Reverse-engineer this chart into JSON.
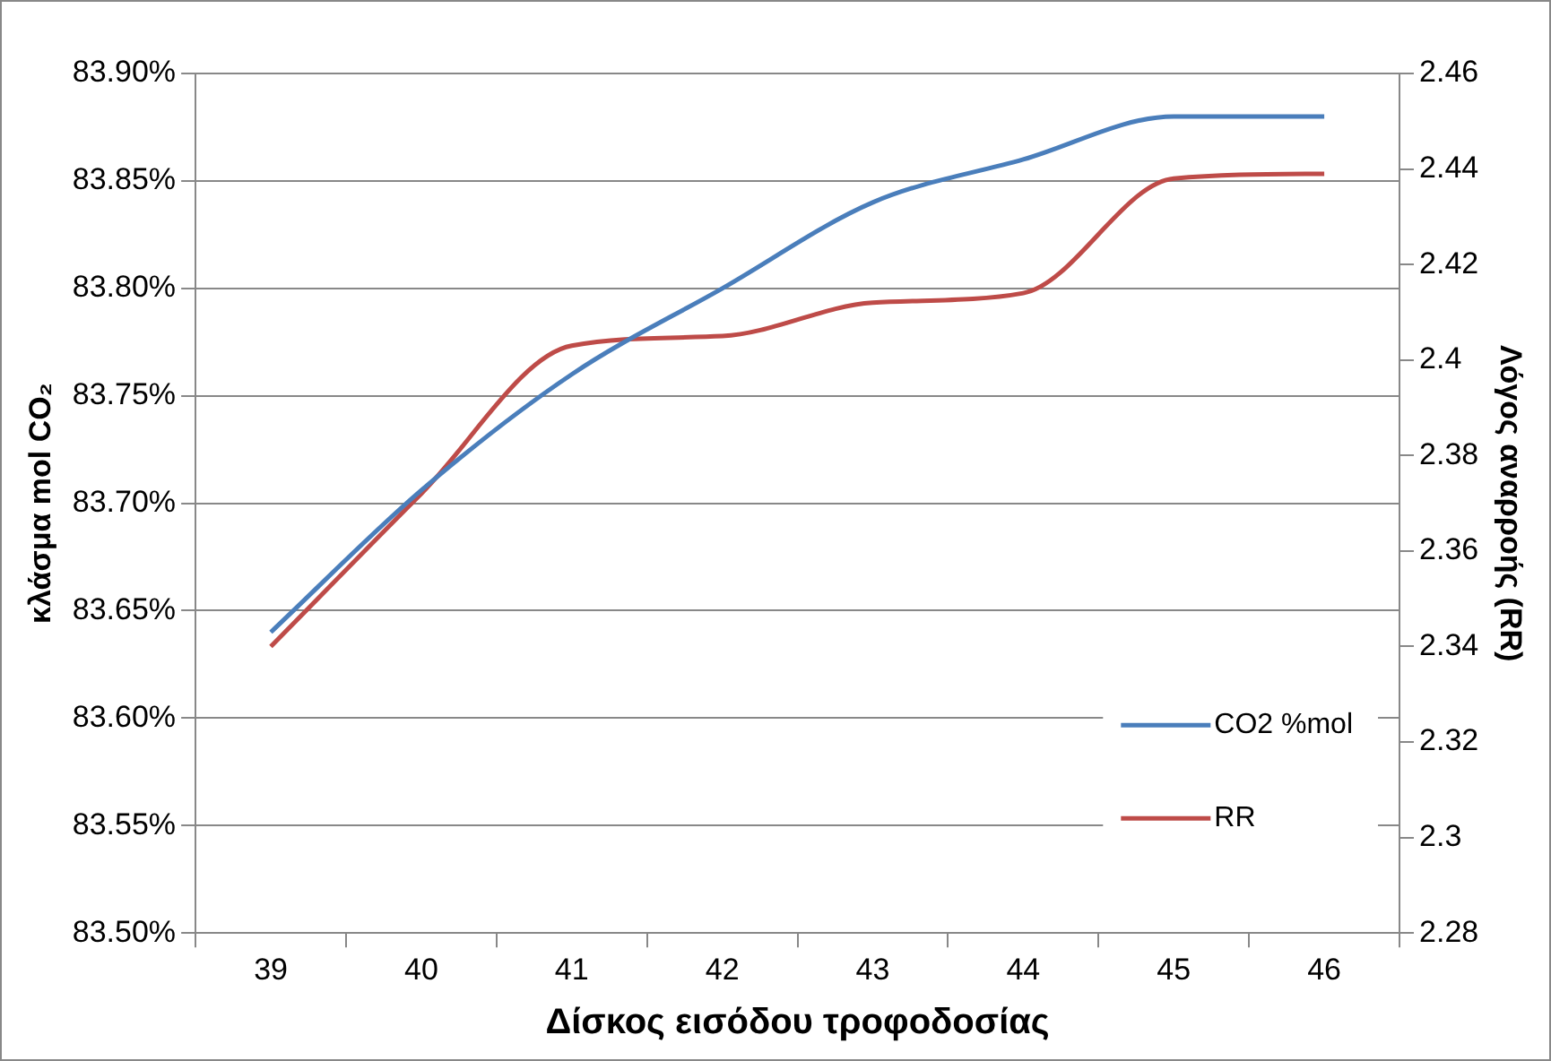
{
  "chart_data": {
    "type": "line",
    "xlabel": "Δίσκος εισόδου τροφοδοσίας",
    "ylabel": "κλάσμα mol CO₂",
    "y2label": "Λόγος αναρροής (RR)",
    "categories": [
      "39",
      "40",
      "41",
      "42",
      "43",
      "44",
      "45",
      "46"
    ],
    "series": [
      {
        "name": "CO2 %mol",
        "color": "#4a7ebb",
        "values": [
          83.64,
          83.706,
          83.76,
          83.8,
          83.84,
          83.86,
          83.88,
          83.88
        ]
      },
      {
        "name": "RR",
        "color": "#be4b48",
        "axis": "y2",
        "values": [
          2.34,
          2.372,
          2.403,
          2.405,
          2.412,
          2.414,
          2.438,
          2.439
        ]
      }
    ],
    "ylim": [
      83.5,
      83.9
    ],
    "yticks": [
      {
        "value": 83.5,
        "label": "83.50%"
      },
      {
        "value": 83.55,
        "label": "83.55%"
      },
      {
        "value": 83.6,
        "label": "83.60%"
      },
      {
        "value": 83.65,
        "label": "83.65%"
      },
      {
        "value": 83.7,
        "label": "83.70%"
      },
      {
        "value": 83.75,
        "label": "83.75%"
      },
      {
        "value": 83.8,
        "label": "83.80%"
      },
      {
        "value": 83.85,
        "label": "83.85%"
      },
      {
        "value": 83.9,
        "label": "83.90%"
      }
    ],
    "y2lim": [
      2.28,
      2.46
    ],
    "y2ticks": [
      2.28,
      2.3,
      2.32,
      2.34,
      2.36,
      2.38,
      2.4,
      2.42,
      2.44,
      2.46
    ],
    "grid": "y",
    "legend": "bottom right",
    "marker": "none",
    "line_style": "solid"
  }
}
